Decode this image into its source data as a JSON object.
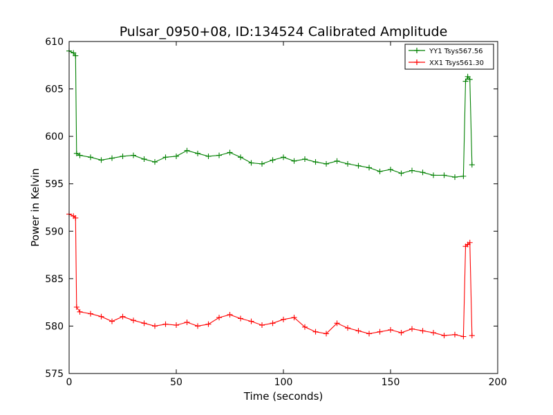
{
  "chart_data": {
    "type": "line",
    "title": "Pulsar_0950+08, ID:134524 Calibrated Amplitude",
    "xlabel": "Time (seconds)",
    "ylabel": "Power in Kelvin",
    "xlim": [
      0,
      200
    ],
    "ylim": [
      575,
      610
    ],
    "xticks": [
      0,
      50,
      100,
      150,
      200
    ],
    "yticks": [
      575,
      580,
      585,
      590,
      595,
      600,
      605,
      610
    ],
    "grid": false,
    "legend_position": "top-right",
    "marker": "+",
    "series": [
      {
        "name": "YY1 Tsys567.56",
        "color": "#008000",
        "x": [
          0,
          2,
          3,
          3.5,
          5,
          10,
          15,
          20,
          25,
          30,
          35,
          40,
          45,
          50,
          55,
          60,
          65,
          70,
          75,
          80,
          85,
          90,
          95,
          100,
          105,
          110,
          115,
          120,
          125,
          130,
          135,
          140,
          145,
          150,
          155,
          160,
          165,
          170,
          175,
          180,
          184,
          185,
          186,
          187,
          188
        ],
        "values": [
          609,
          608.8,
          608.5,
          598.2,
          598.0,
          597.8,
          597.5,
          597.7,
          597.9,
          598.0,
          597.6,
          597.3,
          597.8,
          597.9,
          598.5,
          598.2,
          597.9,
          598.0,
          598.3,
          597.8,
          597.2,
          597.1,
          597.5,
          597.8,
          597.4,
          597.6,
          597.3,
          597.1,
          597.4,
          597.1,
          596.9,
          596.7,
          596.3,
          596.5,
          596.1,
          596.4,
          596.2,
          595.9,
          595.9,
          595.7,
          595.8,
          605.8,
          606.3,
          606.0,
          597.0
        ]
      },
      {
        "name": "XX1 Tsys561.30",
        "color": "#ff0000",
        "x": [
          0,
          2,
          3,
          3.5,
          5,
          10,
          15,
          20,
          25,
          30,
          35,
          40,
          45,
          50,
          55,
          60,
          65,
          70,
          75,
          80,
          85,
          90,
          95,
          100,
          105,
          110,
          115,
          120,
          125,
          130,
          135,
          140,
          145,
          150,
          155,
          160,
          165,
          170,
          175,
          180,
          184,
          185,
          186,
          187,
          188
        ],
        "values": [
          591.8,
          591.6,
          591.4,
          582.0,
          581.5,
          581.3,
          581.0,
          580.5,
          581.0,
          580.6,
          580.3,
          580.0,
          580.2,
          580.1,
          580.4,
          580.0,
          580.2,
          580.9,
          581.2,
          580.8,
          580.5,
          580.1,
          580.3,
          580.7,
          580.9,
          579.9,
          579.4,
          579.2,
          580.3,
          579.8,
          579.5,
          579.2,
          579.4,
          579.6,
          579.3,
          579.7,
          579.5,
          579.3,
          579.0,
          579.1,
          578.9,
          588.4,
          588.6,
          588.8,
          579.0
        ]
      }
    ]
  }
}
